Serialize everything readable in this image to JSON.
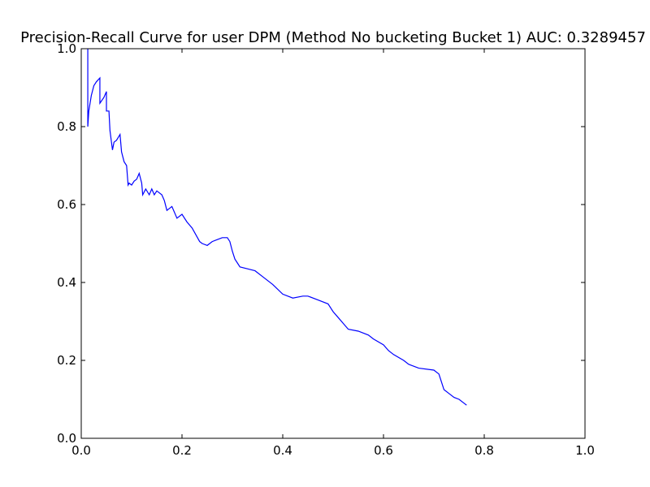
{
  "chart_data": {
    "type": "line",
    "title": "Precision-Recall Curve for user DPM (Method No bucketing Bucket 1) AUC: 0.3289457",
    "xlabel": "",
    "ylabel": "",
    "xlim": [
      0.0,
      1.0
    ],
    "ylim": [
      0.0,
      1.0
    ],
    "x_ticks": [
      "0.0",
      "0.2",
      "0.4",
      "0.6",
      "0.8",
      "1.0"
    ],
    "y_ticks": [
      "0.0",
      "0.2",
      "0.4",
      "0.6",
      "0.8",
      "1.0"
    ],
    "grid": false,
    "legend": "none",
    "line_color": "#0000ff",
    "series": [
      {
        "x": [
          0.013,
          0.013,
          0.015,
          0.02,
          0.025,
          0.03,
          0.037,
          0.037,
          0.045,
          0.05,
          0.05,
          0.055,
          0.057,
          0.062,
          0.065,
          0.07,
          0.077,
          0.08,
          0.085,
          0.09,
          0.093,
          0.095,
          0.1,
          0.105,
          0.11,
          0.115,
          0.12,
          0.122,
          0.128,
          0.135,
          0.14,
          0.145,
          0.15,
          0.16,
          0.165,
          0.17,
          0.175,
          0.18,
          0.19,
          0.2,
          0.21,
          0.22,
          0.235,
          0.24,
          0.25,
          0.26,
          0.27,
          0.28,
          0.29,
          0.295,
          0.3,
          0.305,
          0.31,
          0.315,
          0.33,
          0.345,
          0.36,
          0.38,
          0.4,
          0.42,
          0.44,
          0.45,
          0.47,
          0.49,
          0.5,
          0.51,
          0.52,
          0.53,
          0.55,
          0.57,
          0.58,
          0.6,
          0.61,
          0.62,
          0.64,
          0.65,
          0.66,
          0.67,
          0.7,
          0.71,
          0.715,
          0.72,
          0.73,
          0.74,
          0.75,
          0.76,
          0.765
        ],
        "y": [
          1.0,
          0.8,
          0.84,
          0.88,
          0.905,
          0.915,
          0.925,
          0.86,
          0.875,
          0.89,
          0.84,
          0.84,
          0.79,
          0.74,
          0.76,
          0.765,
          0.78,
          0.735,
          0.71,
          0.7,
          0.65,
          0.655,
          0.65,
          0.66,
          0.665,
          0.68,
          0.655,
          0.625,
          0.64,
          0.625,
          0.64,
          0.625,
          0.635,
          0.625,
          0.61,
          0.585,
          0.59,
          0.595,
          0.565,
          0.575,
          0.555,
          0.54,
          0.505,
          0.5,
          0.495,
          0.505,
          0.51,
          0.515,
          0.515,
          0.505,
          0.48,
          0.46,
          0.45,
          0.44,
          0.435,
          0.43,
          0.415,
          0.395,
          0.37,
          0.36,
          0.365,
          0.365,
          0.355,
          0.345,
          0.325,
          0.31,
          0.295,
          0.28,
          0.275,
          0.265,
          0.255,
          0.24,
          0.225,
          0.215,
          0.2,
          0.19,
          0.185,
          0.18,
          0.175,
          0.165,
          0.145,
          0.125,
          0.115,
          0.105,
          0.1,
          0.09,
          0.085
        ]
      }
    ]
  }
}
